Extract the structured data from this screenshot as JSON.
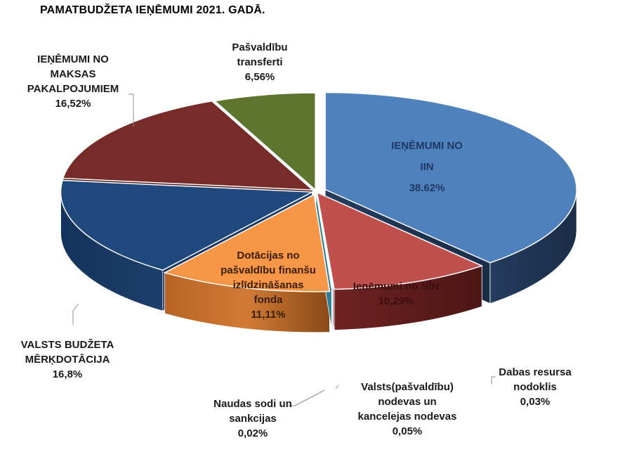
{
  "chart_data": {
    "type": "pie",
    "variant": "3d-exploded",
    "title": "PAMATBUDŽETA IEŅĒMUMI 2021. GADĀ.",
    "slices": [
      {
        "label": "IEŅĒMUMI NO IIN",
        "value_text": "38.62%",
        "value": 38.62,
        "color": "#4F81BD"
      },
      {
        "label": "Ieņēmumi no NĪN",
        "value_text": "10,29%",
        "value": 10.29,
        "color": "#C0504D"
      },
      {
        "label": "Dabas resursa nodoklis",
        "value_text": "0,03%",
        "value": 0.03,
        "color": "#9BBB59"
      },
      {
        "label": "Valsts(pašvaldību) nodevas un kancelejas nodevas",
        "value_text": "0,05%",
        "value": 0.05,
        "color": "#8064A2"
      },
      {
        "label": "Naudas sodi un sankcijas",
        "value_text": "0,02%",
        "value": 0.02,
        "color": "#4BACC6"
      },
      {
        "label": "Dotācijas no pašvaldību finanšu izlīdzināšanas fonda",
        "value_text": "11,11%",
        "value": 11.11,
        "color": "#F79646"
      },
      {
        "label": "VALSTS BUDŽETA MĒRĶDOTĀCIJA",
        "value_text": "16,8%",
        "value": 16.8,
        "color": "#1F497D"
      },
      {
        "label": "IEŅĒMUMI NO MAKSAS PAKALPOJUMIEM",
        "value_text": "16,52%",
        "value": 16.52,
        "color": "#772C2A"
      },
      {
        "label": "Pašvaldību transferti",
        "value_text": "6,56%",
        "value": 6.56,
        "color": "#5E7530"
      }
    ]
  }
}
